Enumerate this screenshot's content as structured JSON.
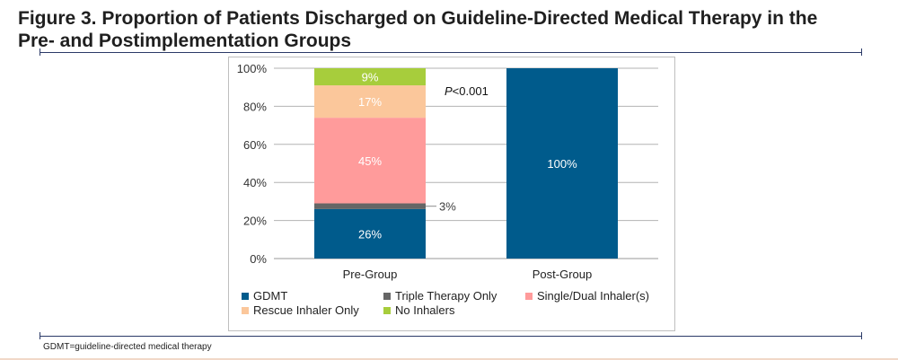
{
  "figure": {
    "title": "Figure 3. Proportion of Patients Discharged on Guideline-Directed Medical Therapy in the Pre- and Postimplementation Groups",
    "footnote": "GDMT=guideline-directed medical therapy"
  },
  "chart_data": {
    "type": "bar",
    "stacked": true,
    "categories": [
      "Pre-Group",
      "Post-Group"
    ],
    "ylim": [
      0,
      100
    ],
    "yticks": [
      "0%",
      "20%",
      "40%",
      "60%",
      "80%",
      "100%"
    ],
    "grid": true,
    "legend_position": "bottom",
    "annotation": {
      "prefix": "P",
      "text": "<0.001"
    },
    "series": [
      {
        "name": "GDMT",
        "color": "#005b8c",
        "values": [
          26,
          100
        ],
        "labels": [
          "26%",
          "100%"
        ],
        "label_color": "#ffffff"
      },
      {
        "name": "Triple Therapy Only",
        "color": "#666666",
        "values": [
          3,
          0
        ],
        "labels": [
          "3%",
          ""
        ],
        "label_color": "#404040",
        "label_outside": true
      },
      {
        "name": "Single/Dual Inhaler(s)",
        "color": "#ff9b9b",
        "values": [
          45,
          0
        ],
        "labels": [
          "45%",
          ""
        ],
        "label_color": "#ffffff"
      },
      {
        "name": "Rescue Inhaler Only",
        "color": "#fbc79b",
        "values": [
          17,
          0
        ],
        "labels": [
          "17%",
          ""
        ],
        "label_color": "#ffffff"
      },
      {
        "name": "No Inhalers",
        "color": "#a7cd3c",
        "values": [
          9,
          0
        ],
        "labels": [
          "9%",
          ""
        ],
        "label_color": "#ffffff"
      }
    ]
  }
}
